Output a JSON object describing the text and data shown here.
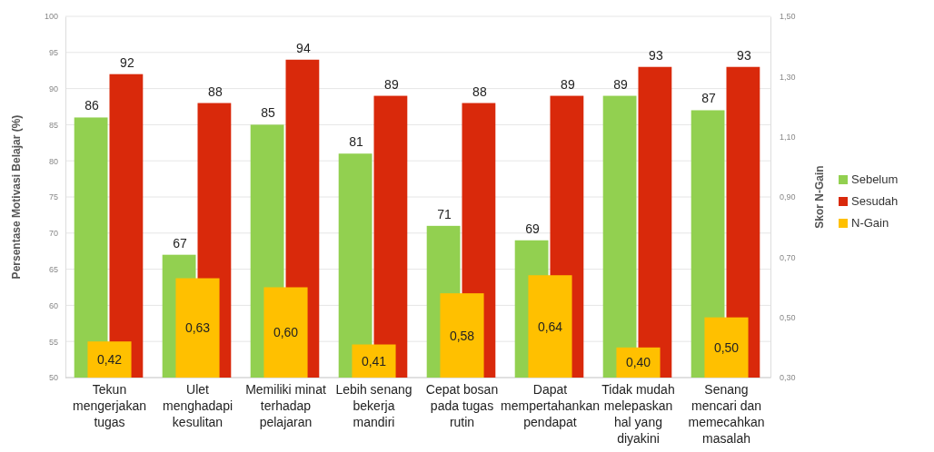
{
  "chart_data": {
    "type": "bar",
    "ylabel": "Persentase Motivasi Belajar (%)",
    "y2label": "Skor N-Gain",
    "categories": [
      "Tekun mengerjakan tugas",
      "Ulet menghadapi kesulitan",
      "Memiliki minat terhadap pelajaran",
      "Lebih senang bekerja mandiri",
      "Cepat bosan pada tugas rutin",
      "Dapat mempertahankan pendapat",
      "Tidak mudah melepaskan hal yang diyakini",
      "Senang mencari dan memecahkan masalah"
    ],
    "series": [
      {
        "name": "Sebelum",
        "color": "#92d050",
        "values": [
          86,
          67,
          85,
          81,
          71,
          69,
          89,
          87
        ],
        "value_labels": [
          "86",
          "67",
          "85",
          "81",
          "71",
          "69",
          "89",
          "87"
        ]
      },
      {
        "name": "Sesudah",
        "color": "#d9290b",
        "values": [
          92,
          88,
          94,
          89,
          88,
          89,
          93,
          93
        ],
        "value_labels": [
          "92",
          "88",
          "94",
          "89",
          "88",
          "89",
          "93",
          "93"
        ]
      },
      {
        "name": "N-Gain",
        "color": "#ffc000",
        "axis": "y2",
        "values": [
          0.42,
          0.63,
          0.6,
          0.41,
          0.58,
          0.64,
          0.4,
          0.5
        ],
        "value_labels": [
          "0,42",
          "0,63",
          "0,60",
          "0,41",
          "0,58",
          "0,64",
          "0,40",
          "0,50"
        ]
      }
    ],
    "ylim": [
      50,
      100
    ],
    "yticks": [
      50,
      55,
      60,
      65,
      70,
      75,
      80,
      85,
      90,
      95,
      100
    ],
    "y2lim": [
      0.3,
      1.5
    ],
    "y2ticks": [
      {
        "value": 0.3,
        "label": "0,30"
      },
      {
        "value": 0.5,
        "label": "0,50"
      },
      {
        "value": 0.7,
        "label": "0,70"
      },
      {
        "value": 0.9,
        "label": "0,90"
      },
      {
        "value": 1.1,
        "label": "1,10"
      },
      {
        "value": 1.3,
        "label": "1,30"
      },
      {
        "value": 1.5,
        "label": "1,50"
      }
    ],
    "grid": "y",
    "legend": "right"
  }
}
